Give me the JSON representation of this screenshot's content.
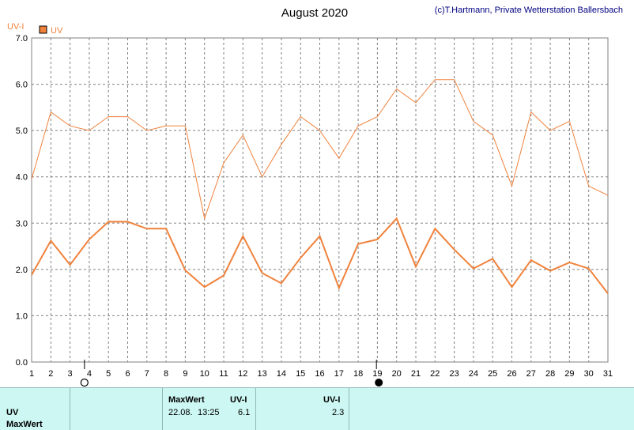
{
  "header": {
    "title": "August 2020",
    "credit": "(c)T.Hartmann, Private Wetterstation Ballersbach",
    "unit_label": "UV-I",
    "legend_label": "UV"
  },
  "colors": {
    "series": "#f0823c",
    "axis": "#808080",
    "grid": "#808080",
    "panel": "#ccf7f3"
  },
  "chart_data": {
    "type": "line",
    "x": [
      1,
      2,
      3,
      4,
      5,
      6,
      7,
      8,
      9,
      10,
      11,
      12,
      13,
      14,
      15,
      16,
      17,
      18,
      19,
      20,
      21,
      22,
      23,
      24,
      25,
      26,
      27,
      28,
      29,
      30,
      31
    ],
    "ylabel": "UV-I",
    "xlim": [
      1,
      31
    ],
    "ylim": [
      0,
      7
    ],
    "y_ticks": [
      "0.0",
      "1.0",
      "2.0",
      "3.0",
      "4.0",
      "5.0",
      "6.0",
      "7.0"
    ],
    "x_ticks": [
      "1",
      "2",
      "3",
      "4",
      "5",
      "6",
      "7",
      "8",
      "9",
      "10",
      "11",
      "12",
      "13",
      "14",
      "15",
      "16",
      "17",
      "18",
      "19",
      "20",
      "21",
      "22",
      "23",
      "24",
      "25",
      "26",
      "27",
      "28",
      "29",
      "30",
      "31"
    ],
    "grid": true,
    "legend": "top-left",
    "series": [
      {
        "name": "UV",
        "values": [
          3.95,
          5.4,
          5.1,
          5.0,
          5.3,
          5.3,
          5.0,
          5.1,
          5.1,
          3.1,
          4.3,
          4.9,
          4.0,
          4.7,
          5.3,
          5.0,
          4.4,
          5.1,
          5.3,
          5.9,
          5.6,
          6.1,
          6.1,
          5.2,
          4.9,
          3.8,
          5.4,
          5.0,
          5.2,
          3.8,
          3.6
        ]
      },
      {
        "values": [
          1.88,
          2.62,
          2.1,
          2.65,
          3.03,
          3.03,
          2.88,
          2.88,
          1.98,
          1.62,
          1.87,
          2.72,
          1.92,
          1.7,
          2.25,
          2.72,
          1.6,
          2.55,
          2.65,
          3.1,
          2.06,
          2.88,
          2.43,
          2.02,
          2.23,
          1.62,
          2.2,
          1.97,
          2.15,
          2.02,
          1.48
        ]
      }
    ],
    "moon_markers": [
      {
        "day": 3.75,
        "phase": "full-moon"
      },
      {
        "day": 18.95,
        "phase": "new-moon"
      }
    ]
  },
  "info": {
    "rows": [
      "UV",
      "MaxWert"
    ],
    "max_header": "MaxWert",
    "unit_header_1": "UV-I",
    "unit_header_2": "UV-I",
    "max_date": "22.08.",
    "max_time": "13:25",
    "max_value": "6.1",
    "avg_value": "2.3"
  }
}
